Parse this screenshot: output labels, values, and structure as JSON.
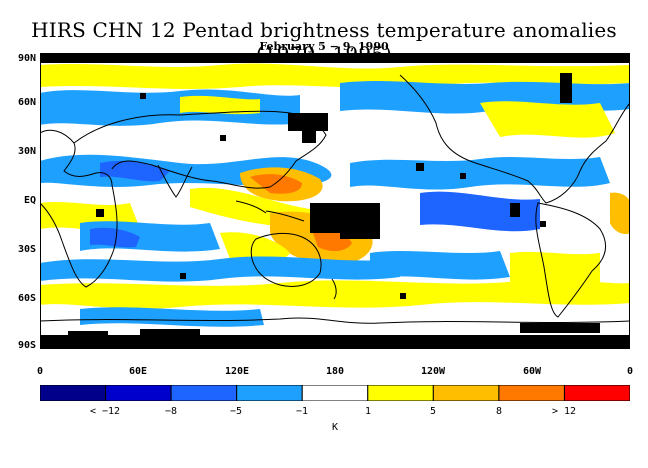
{
  "title": "HIRS CHN 12 Pentad brightness temperature anomalies (1979−1995)",
  "subtitle": "February 5 − 9, 1990",
  "lat_labels": [
    "90N",
    "60N",
    "30N",
    "EQ",
    "30S",
    "60S",
    "90S"
  ],
  "lon_labels": [
    "0",
    "60E",
    "120E",
    "180",
    "120W",
    "60W",
    "0"
  ],
  "legend": {
    "labels": [
      "< −12",
      "−8",
      "−5",
      "−1",
      "1",
      "5",
      "8",
      "> 12"
    ],
    "unit": "K",
    "colors": [
      "#00008b",
      "#0000cd",
      "#1e64ff",
      "#1ea0ff",
      "#ffffff",
      "#ffff00",
      "#ffbe00",
      "#ff7800",
      "#ff0000"
    ],
    "missing_color": "#000000"
  }
}
